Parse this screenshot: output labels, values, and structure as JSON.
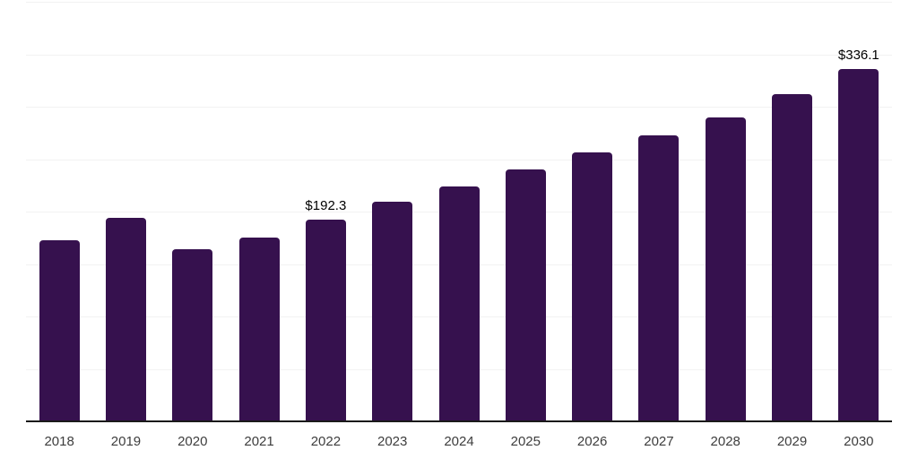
{
  "chart_data": {
    "type": "bar",
    "title": "",
    "xlabel": "",
    "ylabel": "",
    "categories": [
      "2018",
      "2019",
      "2020",
      "2021",
      "2022",
      "2023",
      "2024",
      "2025",
      "2026",
      "2027",
      "2028",
      "2029",
      "2030"
    ],
    "values": [
      172.9,
      194.3,
      163.8,
      175.2,
      192.3,
      209.1,
      224.0,
      240.0,
      256.7,
      272.9,
      289.8,
      312.3,
      336.1
    ],
    "data_labels": {
      "2022": "$192.3",
      "2030": "$336.1"
    },
    "ylim": [
      0,
      400
    ],
    "grid_interval": 50,
    "grid_visible": true,
    "legend": "none",
    "colors": {
      "bar": "#36114e",
      "grid": "#f2f2f2",
      "axis": "#1a1a1a",
      "tick_label": "#3d3d3d",
      "data_label": "#000000"
    }
  }
}
